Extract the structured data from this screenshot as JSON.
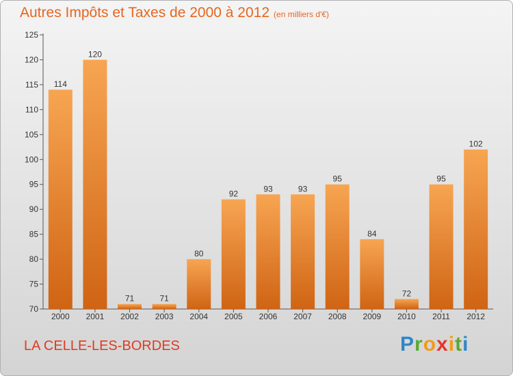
{
  "header": {
    "title": "Autres Impôts et Taxes de 2000 à 2012",
    "subtitle": "(en milliers d'€)"
  },
  "commune": "LA CELLE-LES-BORDES",
  "logo": {
    "letters": [
      "P",
      "r",
      "o",
      "x",
      "i",
      "t",
      "i"
    ],
    "colors": [
      "#2f86c9",
      "#5aa832",
      "#f39a17",
      "#e5352b",
      "#f39a17",
      "#5aa832",
      "#2f86c9"
    ]
  },
  "colors": {
    "bar_top": "#f7a552",
    "bar_bottom": "#cf6414",
    "title": "#e56620",
    "commune": "#dd3a22"
  },
  "chart_data": {
    "type": "bar",
    "title": "Autres Impôts et Taxes de 2000 à 2012",
    "subtitle": "(en milliers d'€)",
    "categories": [
      "2000",
      "2001",
      "2002",
      "2003",
      "2004",
      "2005",
      "2006",
      "2007",
      "2008",
      "2009",
      "2010",
      "2011",
      "2012"
    ],
    "values": [
      114,
      120,
      71,
      71,
      80,
      92,
      93,
      93,
      95,
      84,
      72,
      95,
      102
    ],
    "ylim": [
      70,
      125
    ],
    "yticks": [
      70,
      75,
      80,
      85,
      90,
      95,
      100,
      105,
      110,
      115,
      120,
      125
    ],
    "grid": false,
    "data_labels": true
  }
}
